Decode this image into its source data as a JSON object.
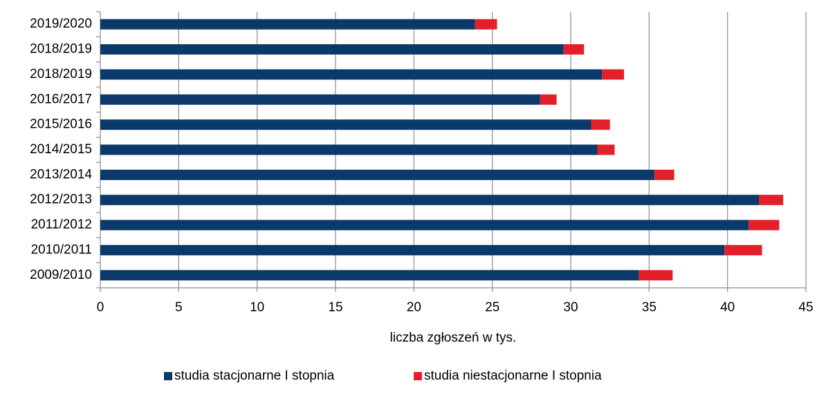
{
  "chart_data": {
    "type": "bar",
    "orientation": "horizontal",
    "stacked": true,
    "categories": [
      "2019/2020",
      "2018/2019",
      "2018/2019",
      "2016/2017",
      "2015/2016",
      "2014/2015",
      "2013/2014",
      "2012/2013",
      "2011/2012",
      "2010/2011",
      "2009/2010"
    ],
    "series": [
      {
        "name": "studia stacjonarne I stopnia",
        "color": "#0b3a6a",
        "values": [
          23.9,
          29.55,
          32.0,
          28.05,
          31.3,
          31.7,
          35.35,
          42.0,
          41.35,
          39.8,
          34.35
        ]
      },
      {
        "name": "studia niestacjonarne I stopnia",
        "color": "#e3202a",
        "values": [
          1.4,
          1.3,
          1.4,
          1.05,
          1.2,
          1.1,
          1.25,
          1.55,
          1.95,
          2.4,
          2.15
        ]
      }
    ],
    "xlabel": "liczba zgłoszeń w tys.",
    "xlim": [
      0,
      45
    ],
    "xticks": [
      0,
      5,
      10,
      15,
      20,
      25,
      30,
      35,
      40,
      45
    ],
    "grid": true,
    "legend": "bottom"
  }
}
